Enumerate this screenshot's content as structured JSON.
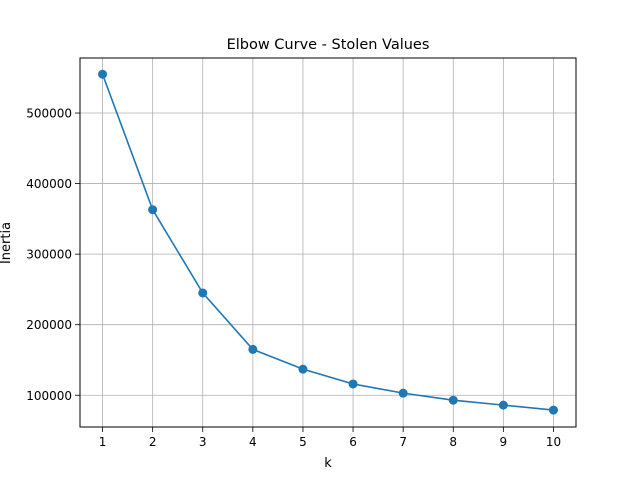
{
  "chart_data": {
    "type": "line",
    "title": "Elbow Curve - Stolen Values",
    "xlabel": "k",
    "ylabel": "Inertia",
    "x": [
      1,
      2,
      3,
      4,
      5,
      6,
      7,
      8,
      9,
      10
    ],
    "series": [
      {
        "values": [
          555000,
          363000,
          245000,
          165000,
          137000,
          116000,
          103000,
          93000,
          86000,
          79000
        ]
      }
    ],
    "markers": true,
    "xlim": [
      0.55,
      10.45
    ],
    "ylim": [
      55000,
      578000
    ],
    "xticks": [
      1,
      2,
      3,
      4,
      5,
      6,
      7,
      8,
      9,
      10
    ],
    "xtick_labels": [
      "1",
      "2",
      "3",
      "4",
      "5",
      "6",
      "7",
      "8",
      "9",
      "10"
    ],
    "yticks": [
      100000,
      200000,
      300000,
      400000,
      500000
    ],
    "ytick_labels": [
      "100000",
      "200000",
      "300000",
      "400000",
      "500000"
    ],
    "grid": true,
    "colors": {
      "series": "#1f77b4",
      "grid": "#b0b0b0",
      "axes": "#000000"
    }
  }
}
